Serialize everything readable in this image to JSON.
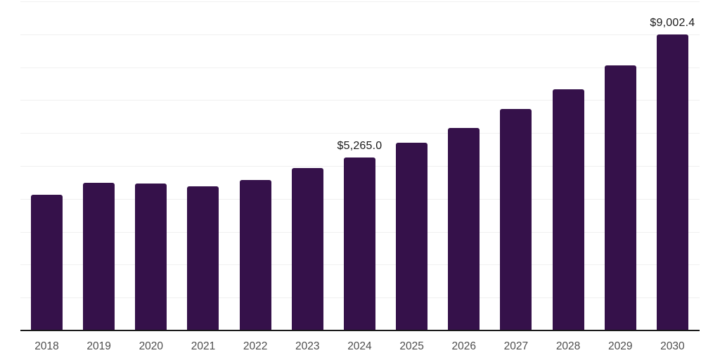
{
  "chart_data": {
    "type": "bar",
    "title": "",
    "xlabel": "",
    "ylabel": "",
    "categories": [
      "2018",
      "2019",
      "2020",
      "2021",
      "2022",
      "2023",
      "2024",
      "2025",
      "2026",
      "2027",
      "2028",
      "2029",
      "2030"
    ],
    "values": [
      4120,
      4490,
      4465,
      4380,
      4580,
      4930,
      5265,
      5700,
      6155,
      6730,
      7335,
      8060,
      9002.4
    ],
    "bar_labels": [
      null,
      null,
      null,
      null,
      null,
      null,
      "$5,265.0",
      null,
      null,
      null,
      null,
      null,
      "$9,002.4"
    ],
    "ylim": [
      0,
      10000
    ],
    "gridline_interval": 1000,
    "grid": true,
    "legend": false,
    "y_tick_labels_visible": false,
    "colors": {
      "bar": "#35114A",
      "gridline": "#F0F0F0",
      "axis_line": "#1A1A1A",
      "tick_label": "#4D4D4D",
      "data_label": "#1A1A1A",
      "background": "#FFFFFF"
    }
  }
}
